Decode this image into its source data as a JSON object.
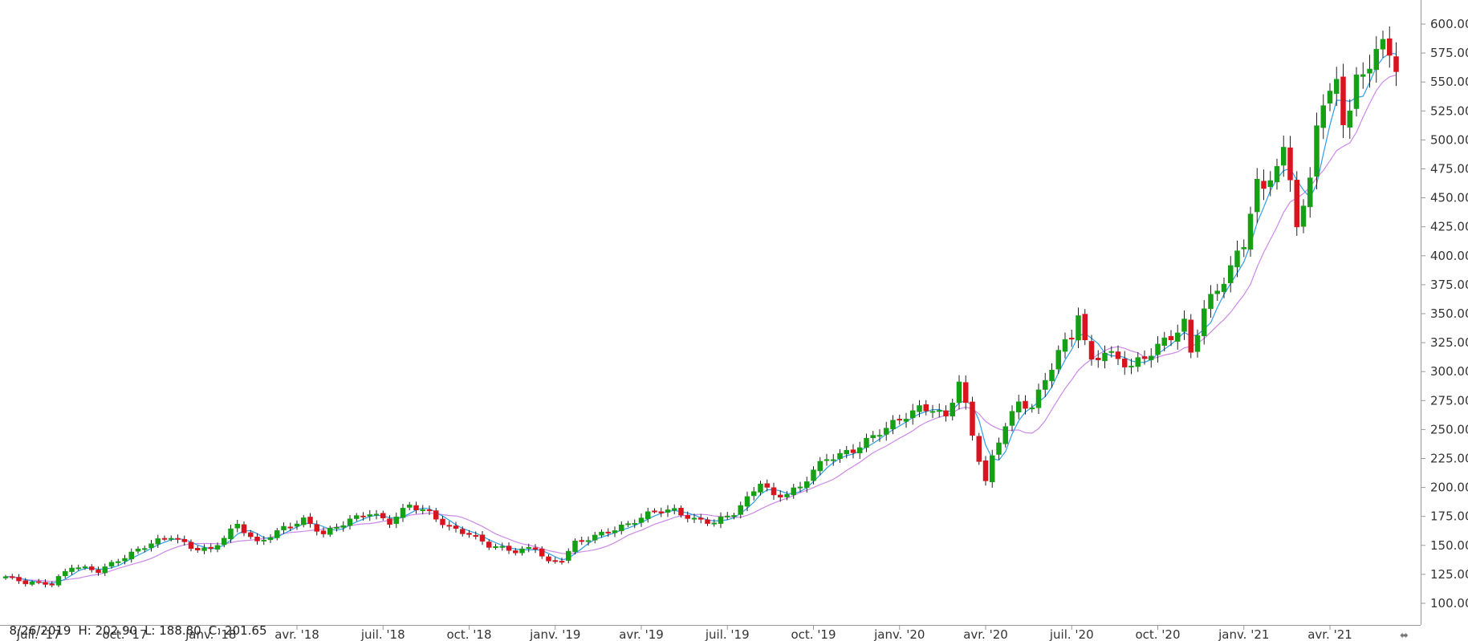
{
  "ohlc_readout": {
    "date": "8/26/2019",
    "high": "H: 202.90",
    "low": "L: 188.80",
    "close": "C: 201.65"
  },
  "chart_data": {
    "type": "candlestick",
    "interval": "weekly",
    "ylim": [
      100,
      600
    ],
    "y_ticks": [
      "100.00",
      "125.00",
      "150.00",
      "175.00",
      "200.00",
      "225.00",
      "250.00",
      "275.00",
      "300.00",
      "325.00",
      "350.00",
      "375.00",
      "400.00",
      "425.00",
      "450.00",
      "475.00",
      "500.00",
      "525.00",
      "550.00",
      "575.00",
      "600.00"
    ],
    "x_ticks": [
      {
        "label": "juil. '17",
        "week": 5
      },
      {
        "label": "oct. '17",
        "week": 18
      },
      {
        "label": "janv. '18",
        "week": 31
      },
      {
        "label": "avr. '18",
        "week": 44
      },
      {
        "label": "juil. '18",
        "week": 57
      },
      {
        "label": "oct. '18",
        "week": 70
      },
      {
        "label": "janv. '19",
        "week": 83
      },
      {
        "label": "avr. '19",
        "week": 96
      },
      {
        "label": "juil. '19",
        "week": 109
      },
      {
        "label": "oct. '19",
        "week": 122
      },
      {
        "label": "janv. '20",
        "week": 135
      },
      {
        "label": "avr. '20",
        "week": 148
      },
      {
        "label": "juil. '20",
        "week": 161
      },
      {
        "label": "oct. '20",
        "week": 174
      },
      {
        "label": "janv. '21",
        "week": 187
      },
      {
        "label": "avr. '21",
        "week": 200
      }
    ],
    "close_anchors": [
      [
        0,
        123
      ],
      [
        3,
        118
      ],
      [
        7,
        117
      ],
      [
        10,
        132
      ],
      [
        14,
        128
      ],
      [
        18,
        140
      ],
      [
        22,
        152
      ],
      [
        25,
        158
      ],
      [
        28,
        148
      ],
      [
        31,
        146
      ],
      [
        35,
        168
      ],
      [
        38,
        152
      ],
      [
        42,
        165
      ],
      [
        45,
        172
      ],
      [
        48,
        160
      ],
      [
        52,
        172
      ],
      [
        55,
        178
      ],
      [
        58,
        170
      ],
      [
        61,
        185
      ],
      [
        64,
        178
      ],
      [
        67,
        165
      ],
      [
        70,
        160
      ],
      [
        73,
        150
      ],
      [
        77,
        145
      ],
      [
        80,
        148
      ],
      [
        82,
        135
      ],
      [
        84,
        138
      ],
      [
        86,
        152
      ],
      [
        90,
        160
      ],
      [
        94,
        168
      ],
      [
        98,
        180
      ],
      [
        101,
        180
      ],
      [
        104,
        172
      ],
      [
        107,
        170
      ],
      [
        110,
        178
      ],
      [
        112,
        190
      ],
      [
        114,
        205
      ],
      [
        116,
        192
      ],
      [
        118,
        195
      ],
      [
        120,
        200
      ],
      [
        122,
        215
      ],
      [
        124,
        225
      ],
      [
        126,
        228
      ],
      [
        128,
        232
      ],
      [
        130,
        240
      ],
      [
        132,
        248
      ],
      [
        134,
        255
      ],
      [
        136,
        262
      ],
      [
        138,
        268
      ],
      [
        140,
        268
      ],
      [
        142,
        260
      ],
      [
        144,
        292
      ],
      [
        145,
        270
      ],
      [
        146,
        245
      ],
      [
        147,
        225
      ],
      [
        148,
        205
      ],
      [
        149,
        225
      ],
      [
        151,
        255
      ],
      [
        153,
        272
      ],
      [
        155,
        270
      ],
      [
        157,
        292
      ],
      [
        159,
        318
      ],
      [
        161,
        330
      ],
      [
        162,
        352
      ],
      [
        163,
        325
      ],
      [
        164,
        308
      ],
      [
        166,
        318
      ],
      [
        168,
        310
      ],
      [
        170,
        305
      ],
      [
        172,
        312
      ],
      [
        174,
        322
      ],
      [
        176,
        330
      ],
      [
        178,
        342
      ],
      [
        179,
        315
      ],
      [
        181,
        355
      ],
      [
        183,
        370
      ],
      [
        185,
        390
      ],
      [
        187,
        410
      ],
      [
        188,
        440
      ],
      [
        189,
        462
      ],
      [
        190,
        455
      ],
      [
        191,
        470
      ],
      [
        193,
        488
      ],
      [
        194,
        465
      ],
      [
        195,
        430
      ],
      [
        196,
        442
      ],
      [
        197,
        462
      ],
      [
        198,
        515
      ],
      [
        199,
        535
      ],
      [
        200,
        538
      ],
      [
        201,
        548
      ],
      [
        202,
        518
      ],
      [
        203,
        528
      ],
      [
        204,
        550
      ],
      [
        205,
        555
      ],
      [
        206,
        568
      ],
      [
        207,
        578
      ],
      [
        208,
        580
      ],
      [
        209,
        575
      ],
      [
        210,
        565
      ]
    ]
  }
}
